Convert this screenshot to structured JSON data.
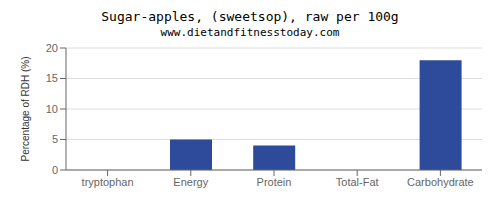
{
  "chart_data": {
    "type": "bar",
    "title": "Sugar-apples, (sweetsop), raw per 100g",
    "subtitle": "www.dietandfitnesstoday.com",
    "categories": [
      "tryptophan",
      "Energy",
      "Protein",
      "Total-Fat",
      "Carbohydrate"
    ],
    "values": [
      0,
      5,
      4,
      0,
      18
    ],
    "color": "#2e4b9b",
    "ylabel": "Percentage of RDH (%)",
    "ylim": [
      0,
      20
    ],
    "yticks": [
      0,
      5,
      10,
      15,
      20
    ],
    "grid": true
  }
}
